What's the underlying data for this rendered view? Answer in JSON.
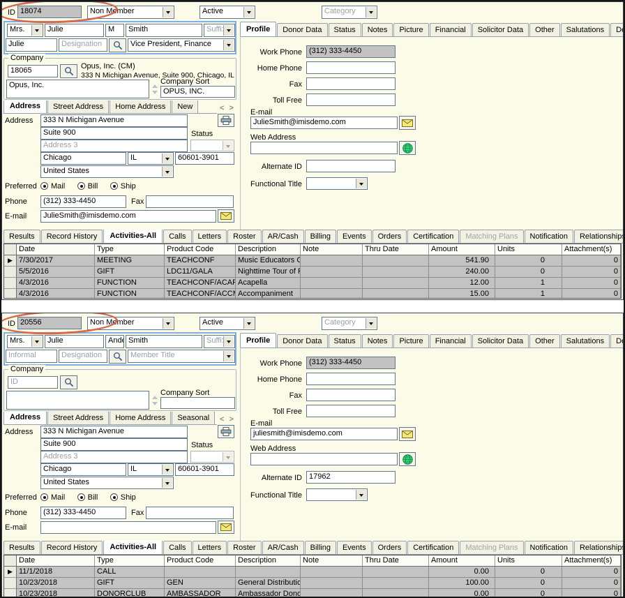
{
  "labels": {
    "id": "ID",
    "category": "Category",
    "suffix": "Suffi:",
    "designation": "Designation",
    "company": "Company",
    "company_sort": "Company Sort",
    "address": "Address",
    "address3": "Address 3",
    "status": "Status",
    "preferred": "Preferred",
    "mail": "Mail",
    "bill": "Bill",
    "ship": "Ship",
    "phone": "Phone",
    "fax": "Fax",
    "email": "E-mail",
    "work_phone": "Work Phone",
    "home_phone": "Home Phone",
    "toll_free": "Toll Free",
    "web_address": "Web Address",
    "alternate_id": "Alternate ID",
    "functional_title": "Functional Title"
  },
  "tabs": {
    "right": [
      "Profile",
      "Donor Data",
      "Status",
      "Notes",
      "Picture",
      "Financial",
      "Solicitor Data",
      "Other",
      "Salutations",
      "Demo"
    ],
    "bottom": [
      "Results",
      "Record History",
      "Activities-All",
      "Calls",
      "Letters",
      "Roster",
      "AR/Cash",
      "Billing",
      "Events",
      "Orders",
      "Certification",
      "Matching Plans",
      "Notification",
      "Relationships"
    ]
  },
  "grid_headers": [
    "Date",
    "Type",
    "Product Code",
    "Description",
    "Note",
    "Thru Date",
    "Amount",
    "Units",
    "Attachment(s)"
  ],
  "colors": {
    "panel_bg": "#FBFBE8",
    "annotation_red": "#D8694D",
    "name_highlight_blue": "#7EB0E8",
    "readonly_gray": "#C2C2C2"
  },
  "panels": [
    {
      "id_value": "18074",
      "member_type": "Non Member",
      "status": "Active",
      "prefix": "Mrs.",
      "first_name": "Julie",
      "middle_name": "M",
      "last_name": "Smith",
      "informal_text": "Julie",
      "informal_muted": "",
      "title_text": "Vice President, Finance",
      "title_muted": "",
      "company_id_text": "18065",
      "company_id_muted": "",
      "company_line1": "Opus, Inc. (CM)",
      "company_line2": "333 N Michigan Avenue, Suite 900, Chicago, IL",
      "company_name": "Opus, Inc.",
      "company_sort": "OPUS, INC.",
      "address_tabs": [
        "Address",
        "Street Address",
        "Home Address",
        "New"
      ],
      "addr_line1": "333 N Michigan Avenue",
      "addr_line2": "Suite 900",
      "city": "Chicago",
      "state": "IL",
      "zip": "60601-3901",
      "country": "United States",
      "phone": "(312) 333-4450",
      "fax": "",
      "email_left": "JulieSmith@imisdemo.com",
      "work_phone": "(312) 333-4450",
      "home_phone": "",
      "profile_fax": "",
      "toll_free": "",
      "profile_email": "JulieSmith@imisdemo.com",
      "web_address": "",
      "alternate_id": "",
      "functional_title": "",
      "grid_rows": [
        [
          "7/30/2017",
          "MEETING",
          "TEACHCONF",
          "Music Educators Con",
          "",
          "",
          "541.90",
          "0",
          "0"
        ],
        [
          "5/5/2016",
          "GIFT",
          "LDC11/GALA",
          "Nighttime Tour of Pa",
          "",
          "",
          "240.00",
          "0",
          "0"
        ],
        [
          "4/3/2016",
          "FUNCTION",
          "TEACHCONF/ACAPE",
          "Acapella",
          "",
          "",
          "12.00",
          "1",
          "0"
        ],
        [
          "4/3/2016",
          "FUNCTION",
          "TEACHCONF/ACCMP",
          "Accompaniment",
          "",
          "",
          "15.00",
          "1",
          "0"
        ]
      ]
    },
    {
      "id_value": "20556",
      "member_type": "Non Member",
      "status": "Active",
      "prefix": "Mrs.",
      "first_name": "Julie",
      "middle_name": "Ander",
      "last_name": "Smith",
      "informal_text": "Informal",
      "informal_muted": "muted",
      "title_text": "Member Title",
      "title_muted": "muted",
      "company_id_text": "ID",
      "company_id_muted": "muted",
      "company_line1": "",
      "company_line2": "",
      "company_name": "",
      "company_sort": "",
      "address_tabs": [
        "Address",
        "Street Address",
        "Home Address",
        "Seasonal"
      ],
      "addr_line1": "333 N Michigan Avenue",
      "addr_line2": "Suite 900",
      "city": "Chicago",
      "state": "IL",
      "zip": "60601-3901",
      "country": "United States",
      "phone": "(312) 333-4450",
      "fax": "",
      "email_left": "",
      "work_phone": "(312) 333-4450",
      "home_phone": "",
      "profile_fax": "",
      "toll_free": "",
      "profile_email": "juliesmith@imisdemo.com",
      "web_address": "",
      "alternate_id": "17962",
      "functional_title": "",
      "grid_rows": [
        [
          "11/1/2018",
          "CALL",
          "",
          "",
          "",
          "",
          "0.00",
          "0",
          "0"
        ],
        [
          "10/23/2018",
          "GIFT",
          "GEN",
          "General Distribution",
          "",
          "",
          "100.00",
          "0",
          "0"
        ],
        [
          "10/23/2018",
          "DONORCLUB",
          "AMBASSADOR",
          "Ambassador Donor C",
          "",
          "",
          "0.00",
          "0",
          "0"
        ]
      ]
    }
  ]
}
